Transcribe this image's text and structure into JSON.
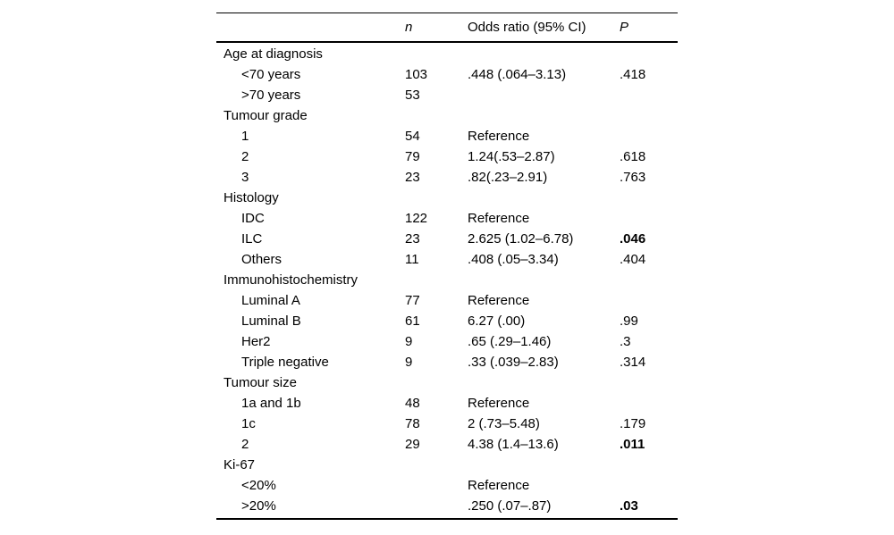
{
  "colors": {
    "background": "#ffffff",
    "text": "#000000",
    "rule": "#000000"
  },
  "table": {
    "header": {
      "label": "",
      "n": "n",
      "odds_ratio": "Odds ratio (95% CI)",
      "p": "P"
    },
    "rows": [
      {
        "label": "Age at diagnosis",
        "group": true,
        "n": "",
        "or": "",
        "p": "",
        "p_bold": false
      },
      {
        "label": "<70 years",
        "group": false,
        "n": "103",
        "or": ".448 (.064–3.13)",
        "p": ".418",
        "p_bold": false
      },
      {
        "label": ">70 years",
        "group": false,
        "n": "53",
        "or": "",
        "p": "",
        "p_bold": false
      },
      {
        "label": "Tumour grade",
        "group": true,
        "n": "",
        "or": "",
        "p": "",
        "p_bold": false
      },
      {
        "label": "1",
        "group": false,
        "n": "54",
        "or": "Reference",
        "p": "",
        "p_bold": false
      },
      {
        "label": "2",
        "group": false,
        "n": "79",
        "or": "1.24(.53–2.87)",
        "p": ".618",
        "p_bold": false
      },
      {
        "label": "3",
        "group": false,
        "n": "23",
        "or": ".82(.23–2.91)",
        "p": ".763",
        "p_bold": false
      },
      {
        "label": "Histology",
        "group": true,
        "n": "",
        "or": "",
        "p": "",
        "p_bold": false
      },
      {
        "label": "IDC",
        "group": false,
        "n": "122",
        "or": "Reference",
        "p": "",
        "p_bold": false
      },
      {
        "label": "ILC",
        "group": false,
        "n": "23",
        "or": "2.625 (1.02–6.78)",
        "p": ".046",
        "p_bold": true
      },
      {
        "label": "Others",
        "group": false,
        "n": "11",
        "or": ".408 (.05–3.34)",
        "p": ".404",
        "p_bold": false
      },
      {
        "label": "Immunohistochemistry",
        "group": true,
        "n": "",
        "or": "",
        "p": "",
        "p_bold": false
      },
      {
        "label": "Luminal A",
        "group": false,
        "n": "77",
        "or": "Reference",
        "p": "",
        "p_bold": false
      },
      {
        "label": "Luminal B",
        "group": false,
        "n": "61",
        "or": "6.27 (.00)",
        "p": ".99",
        "p_bold": false
      },
      {
        "label": "Her2",
        "group": false,
        "n": "9",
        "or": ".65 (.29–1.46)",
        "p": ".3",
        "p_bold": false
      },
      {
        "label": "Triple negative",
        "group": false,
        "n": "9",
        "or": ".33 (.039–2.83)",
        "p": ".314",
        "p_bold": false
      },
      {
        "label": "Tumour size",
        "group": true,
        "n": "",
        "or": "",
        "p": "",
        "p_bold": false
      },
      {
        "label": "1a and 1b",
        "group": false,
        "n": "48",
        "or": "Reference",
        "p": "",
        "p_bold": false
      },
      {
        "label": "1c",
        "group": false,
        "n": "78",
        "or": "2 (.73–5.48)",
        "p": ".179",
        "p_bold": false
      },
      {
        "label": "2",
        "group": false,
        "n": "29",
        "or": "4.38 (1.4–13.6)",
        "p": ".011",
        "p_bold": true
      },
      {
        "label": "Ki-67",
        "group": true,
        "n": "",
        "or": "",
        "p": "",
        "p_bold": false
      },
      {
        "label": "<20%",
        "group": false,
        "n": "",
        "or": "Reference",
        "p": "",
        "p_bold": false
      },
      {
        "label": ">20%",
        "group": false,
        "n": "",
        "or": ".250 (.07–.87)",
        "p": ".03",
        "p_bold": true
      }
    ]
  }
}
